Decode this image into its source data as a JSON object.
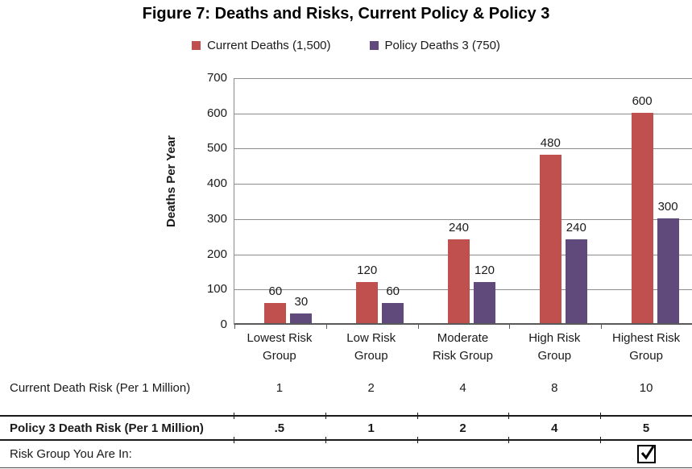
{
  "title": "Figure 7: Deaths and Risks, Current Policy & Policy 3",
  "chart_data": {
    "type": "bar",
    "title": "Figure 7: Deaths and Risks, Current Policy & Policy 3",
    "categories": [
      "Lowest Risk Group",
      "Low Risk Group",
      "Moderate Risk Group",
      "High Risk Group",
      "Highest Risk Group"
    ],
    "categories_wrapped": [
      "Lowest Risk\nGroup",
      "Low Risk\nGroup",
      "Moderate\nRisk Group",
      "High Risk\nGroup",
      "Highest Risk\nGroup"
    ],
    "series": [
      {
        "name": "Current Deaths (1,500)",
        "color": "#C0504D",
        "values": [
          60,
          120,
          240,
          480,
          600
        ]
      },
      {
        "name": "Policy Deaths 3 (750)",
        "color": "#5F4A7B",
        "values": [
          30,
          60,
          120,
          240,
          300
        ]
      }
    ],
    "xlabel": "",
    "ylabel": "Deaths Per Year",
    "ylim": [
      0,
      700
    ],
    "ytick_interval": 100,
    "ytick_labels": [
      "0",
      "100",
      "200",
      "300",
      "400",
      "500",
      "600",
      "700"
    ],
    "grid": true,
    "data_labels": true,
    "legend_position": "top"
  },
  "table": {
    "rows": [
      {
        "label": "Current Death Risk (Per 1 Million)",
        "values": [
          "1",
          "2",
          "4",
          "8",
          "10"
        ],
        "bold": false
      },
      {
        "label": "Policy 3 Death Risk (Per 1 Million)",
        "values": [
          ".5",
          "1",
          "2",
          "4",
          "5"
        ],
        "bold": true
      },
      {
        "label": "Risk Group You Are In:",
        "values": [
          "",
          "",
          "",
          "",
          ""
        ],
        "bold": false,
        "checkbox_col": 4,
        "checkbox_checked": true
      }
    ]
  },
  "colors": {
    "gridline": "#8c8c8c",
    "axis": "#595959",
    "text": "#1a1a1a",
    "table_line": "#1a1a1a"
  }
}
